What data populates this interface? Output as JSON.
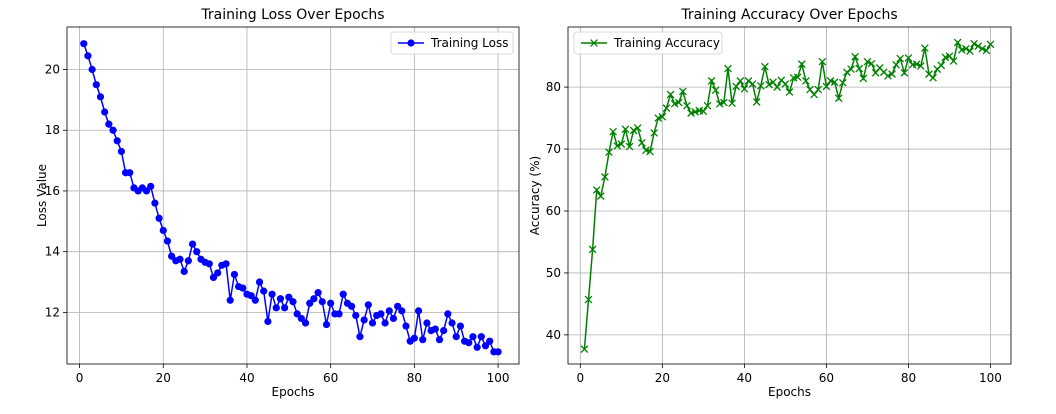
{
  "chart_data": [
    {
      "type": "line",
      "title": "Training Loss Over Epochs",
      "xlabel": "Epochs",
      "ylabel": "Loss Value",
      "xlim": [
        -3,
        105
      ],
      "ylim": [
        10.3,
        21.4
      ],
      "xticks": [
        0,
        20,
        40,
        60,
        80,
        100
      ],
      "yticks": [
        12,
        14,
        16,
        18,
        20
      ],
      "grid": true,
      "legend_position": "upper-right",
      "marker": "circle",
      "series": [
        {
          "name": "Training Loss",
          "color": "#0000ff",
          "x": [
            1,
            2,
            3,
            4,
            5,
            6,
            7,
            8,
            9,
            10,
            11,
            12,
            13,
            14,
            15,
            16,
            17,
            18,
            19,
            20,
            21,
            22,
            23,
            24,
            25,
            26,
            27,
            28,
            29,
            30,
            31,
            32,
            33,
            34,
            35,
            36,
            37,
            38,
            39,
            40,
            41,
            42,
            43,
            44,
            45,
            46,
            47,
            48,
            49,
            50,
            51,
            52,
            53,
            54,
            55,
            56,
            57,
            58,
            59,
            60,
            61,
            62,
            63,
            64,
            65,
            66,
            67,
            68,
            69,
            70,
            71,
            72,
            73,
            74,
            75,
            76,
            77,
            78,
            79,
            80,
            81,
            82,
            83,
            84,
            85,
            86,
            87,
            88,
            89,
            90,
            91,
            92,
            93,
            94,
            95,
            96,
            97,
            98,
            99,
            100
          ],
          "y": [
            20.85,
            20.45,
            20.0,
            19.5,
            19.1,
            18.6,
            18.2,
            18.0,
            17.65,
            17.3,
            16.6,
            16.6,
            16.1,
            16.0,
            16.1,
            16.0,
            16.15,
            15.6,
            15.1,
            14.7,
            14.35,
            13.85,
            13.7,
            13.75,
            13.35,
            13.7,
            14.25,
            14.0,
            13.75,
            13.65,
            13.6,
            13.15,
            13.3,
            13.55,
            13.6,
            12.4,
            13.25,
            12.85,
            12.8,
            12.6,
            12.55,
            12.4,
            13.0,
            12.7,
            11.7,
            12.6,
            12.15,
            12.45,
            12.15,
            12.5,
            12.35,
            11.95,
            11.8,
            11.65,
            12.3,
            12.45,
            12.65,
            12.35,
            11.6,
            12.3,
            11.95,
            11.95,
            12.6,
            12.3,
            12.2,
            11.9,
            11.2,
            11.75,
            12.25,
            11.65,
            11.9,
            11.95,
            11.65,
            12.05,
            11.8,
            12.2,
            12.05,
            11.55,
            11.05,
            11.15,
            12.05,
            11.1,
            11.65,
            11.4,
            11.45,
            11.1,
            11.4,
            11.95,
            11.65,
            11.2,
            11.55,
            11.05,
            11.0,
            11.2,
            10.85,
            11.2,
            10.9,
            11.05,
            10.7,
            10.7
          ]
        }
      ]
    },
    {
      "type": "line",
      "title": "Training Accuracy Over Epochs",
      "xlabel": "Epochs",
      "ylabel": "Accuracy (%)",
      "xlim": [
        -3,
        105
      ],
      "ylim": [
        35.3,
        89.7
      ],
      "xticks": [
        0,
        20,
        40,
        60,
        80,
        100
      ],
      "yticks": [
        40,
        50,
        60,
        70,
        80
      ],
      "grid": true,
      "legend_position": "upper-left",
      "marker": "x",
      "series": [
        {
          "name": "Training Accuracy",
          "color": "#008000",
          "x": [
            1,
            2,
            3,
            4,
            5,
            6,
            7,
            8,
            9,
            10,
            11,
            12,
            13,
            14,
            15,
            16,
            17,
            18,
            19,
            20,
            21,
            22,
            23,
            24,
            25,
            26,
            27,
            28,
            29,
            30,
            31,
            32,
            33,
            34,
            35,
            36,
            37,
            38,
            39,
            40,
            41,
            42,
            43,
            44,
            45,
            46,
            47,
            48,
            49,
            50,
            51,
            52,
            53,
            54,
            55,
            56,
            57,
            58,
            59,
            60,
            61,
            62,
            63,
            64,
            65,
            66,
            67,
            68,
            69,
            70,
            71,
            72,
            73,
            74,
            75,
            76,
            77,
            78,
            79,
            80,
            81,
            82,
            83,
            84,
            85,
            86,
            87,
            88,
            89,
            90,
            91,
            92,
            93,
            94,
            95,
            96,
            97,
            98,
            99,
            100
          ],
          "y": [
            37.7,
            45.7,
            53.8,
            63.4,
            62.4,
            65.5,
            69.5,
            72.8,
            70.5,
            70.8,
            73.2,
            70.4,
            73.0,
            73.4,
            71.0,
            69.8,
            69.6,
            72.6,
            75.0,
            75.2,
            76.6,
            78.8,
            77.3,
            77.5,
            79.3,
            77.0,
            75.8,
            76.0,
            76.2,
            76.1,
            77.0,
            81.0,
            79.5,
            77.3,
            77.5,
            83.0,
            77.4,
            80.1,
            81.0,
            79.7,
            81.0,
            80.5,
            77.6,
            80.2,
            83.3,
            80.4,
            80.8,
            80.0,
            81.1,
            80.5,
            79.2,
            81.5,
            81.6,
            83.7,
            81.0,
            79.6,
            78.8,
            79.6,
            84.1,
            80.1,
            81.0,
            80.8,
            78.2,
            80.7,
            82.4,
            82.9,
            84.9,
            83.0,
            81.4,
            84.1,
            83.8,
            82.3,
            83.1,
            82.4,
            81.8,
            82.1,
            83.6,
            84.6,
            82.3,
            84.7,
            83.6,
            83.7,
            83.4,
            86.3,
            82.1,
            81.5,
            82.9,
            83.5,
            84.8,
            85.0,
            84.2,
            87.2,
            86.0,
            86.2,
            85.8,
            87.0,
            86.6,
            86.2,
            85.9,
            86.9
          ]
        }
      ]
    }
  ]
}
